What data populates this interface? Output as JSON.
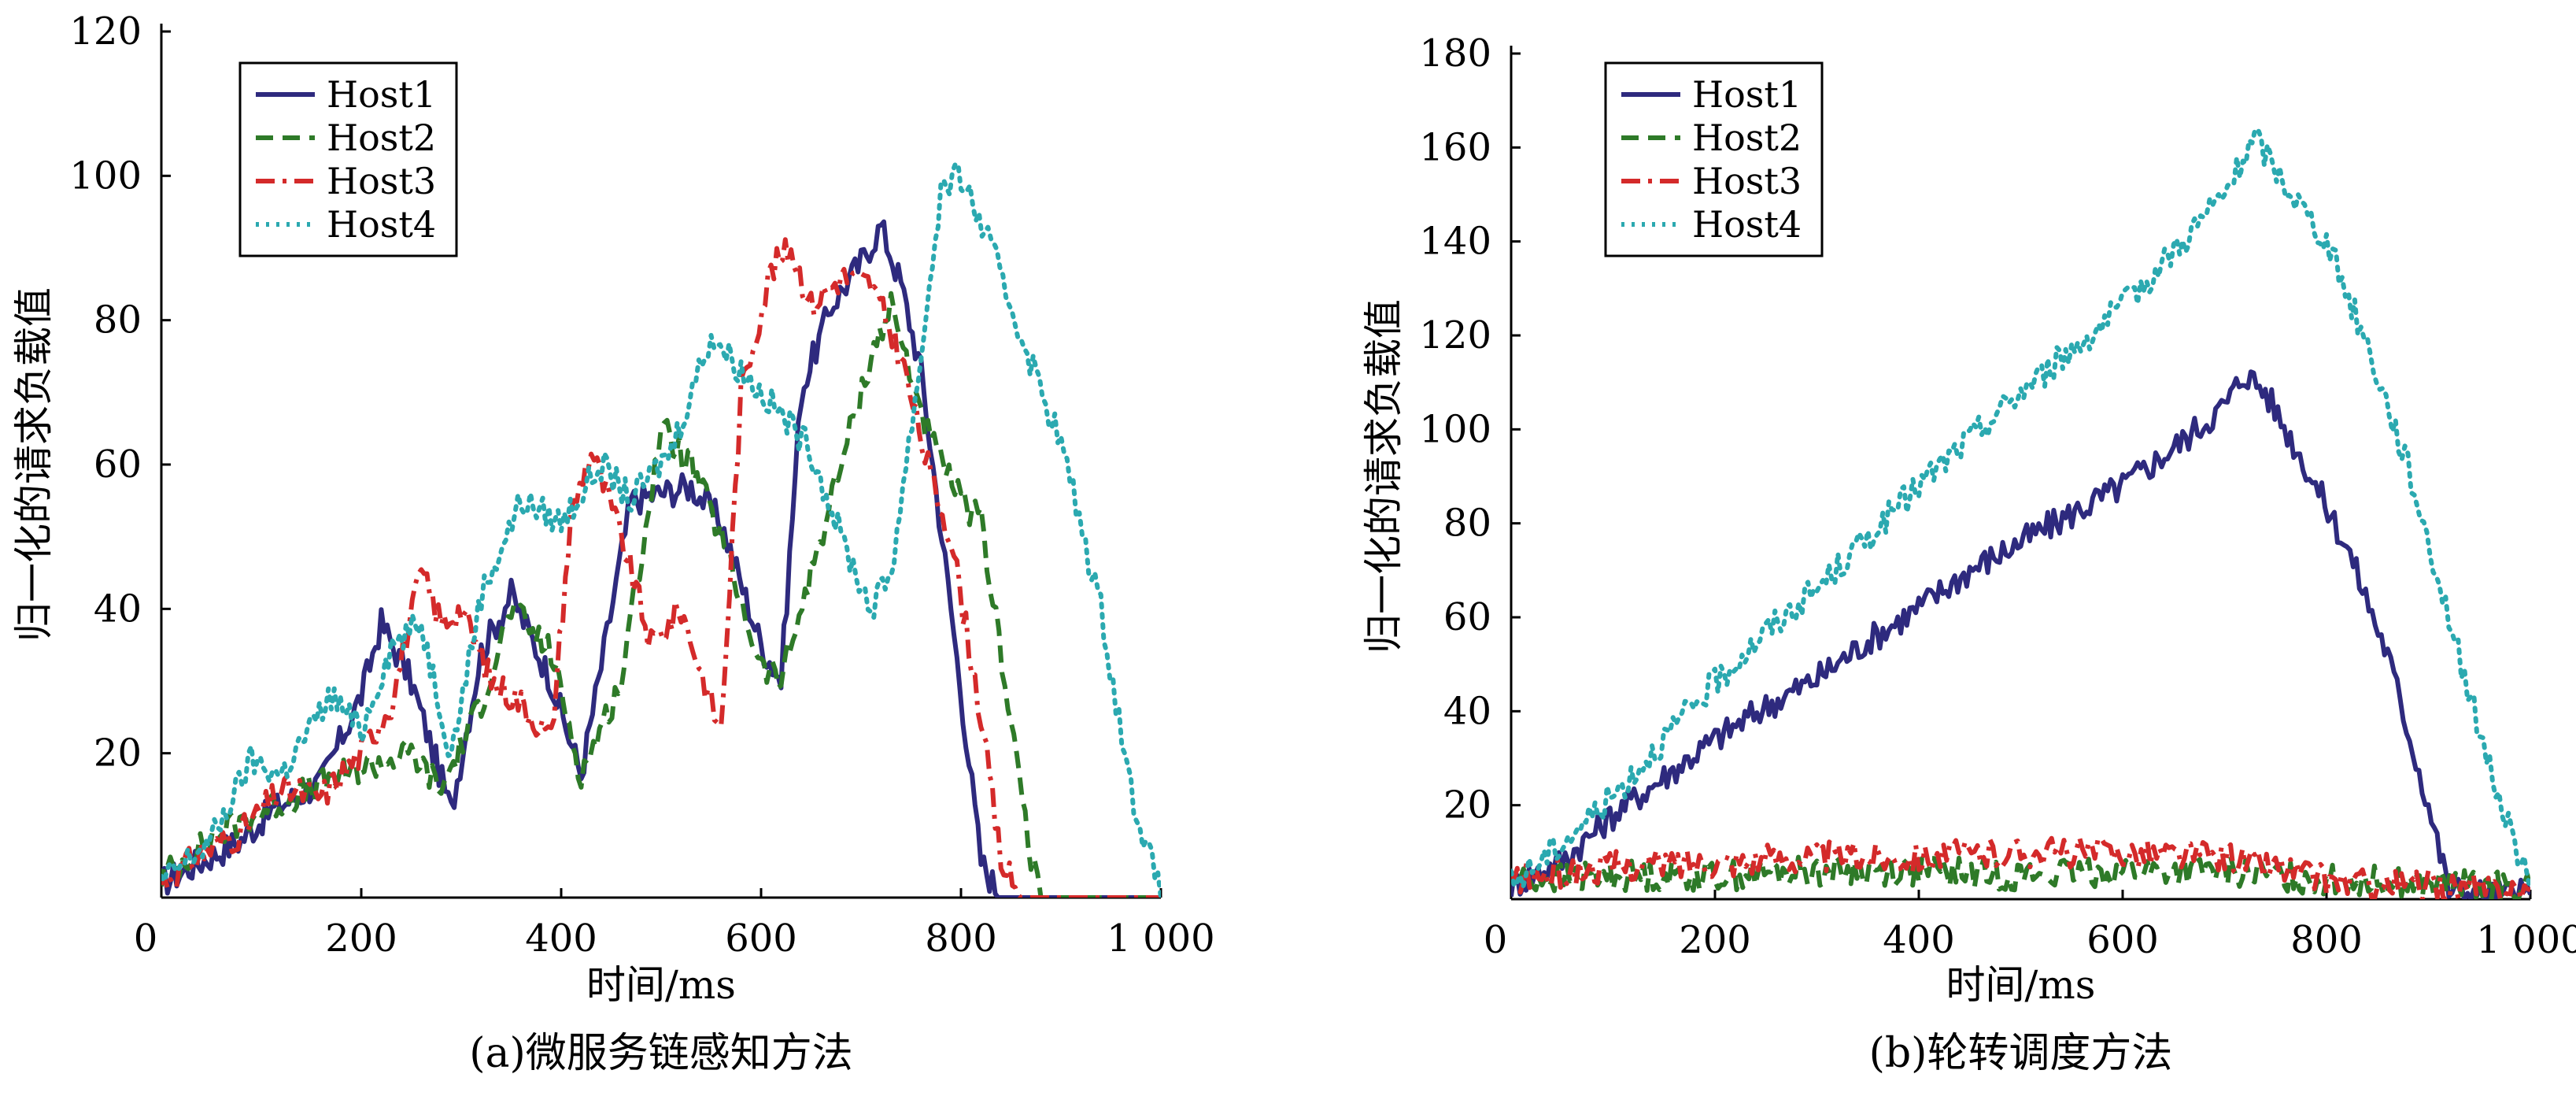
{
  "chart_data": [
    {
      "type": "line",
      "caption": "(a)微服务链感知方法",
      "xlabel": "时间/ms",
      "ylabel": "归一化的请求负载值",
      "xlim": [
        0,
        1000
      ],
      "ylim": [
        0,
        120
      ],
      "xticks": [
        "0",
        "200",
        "400",
        "600",
        "800",
        "1 000"
      ],
      "yticks": [
        "20",
        "40",
        "60",
        "80",
        "100",
        "120"
      ],
      "legend_position": "top-left",
      "series": [
        {
          "name": "Host1",
          "color": "#2e2a7e",
          "style": "solid",
          "x": [
            0,
            40,
            80,
            110,
            160,
            200,
            220,
            250,
            290,
            320,
            350,
            390,
            420,
            440,
            470,
            500,
            530,
            560,
            600,
            620,
            640,
            670,
            700,
            720,
            740,
            760,
            790,
            820,
            840,
            880,
            1000
          ],
          "y": [
            2,
            5,
            8,
            12,
            16,
            28,
            38,
            30,
            12,
            34,
            42,
            30,
            17,
            32,
            55,
            56,
            57,
            52,
            35,
            30,
            70,
            82,
            88,
            93,
            85,
            73,
            40,
            5,
            0,
            0,
            0
          ]
        },
        {
          "name": "Host2",
          "color": "#2e7a28",
          "style": "dashed",
          "x": [
            0,
            30,
            60,
            100,
            150,
            200,
            250,
            280,
            320,
            350,
            390,
            420,
            460,
            500,
            530,
            560,
            600,
            620,
            650,
            680,
            710,
            730,
            770,
            800,
            820,
            850,
            870,
            880,
            1000
          ],
          "y": [
            3,
            6,
            9,
            12,
            15,
            18,
            20,
            15,
            27,
            40,
            34,
            17,
            30,
            65,
            60,
            50,
            32,
            30,
            45,
            60,
            75,
            82,
            63,
            55,
            52,
            25,
            5,
            0,
            0
          ]
        },
        {
          "name": "Host3",
          "color": "#d42a2a",
          "style": "dashdot",
          "x": [
            0,
            40,
            80,
            120,
            160,
            200,
            230,
            260,
            280,
            300,
            330,
            360,
            390,
            410,
            430,
            460,
            490,
            520,
            550,
            560,
            580,
            610,
            630,
            650,
            680,
            710,
            740,
            770,
            790,
            820,
            840,
            860,
            1000
          ],
          "y": [
            2,
            6,
            9,
            15,
            14,
            20,
            27,
            45,
            38,
            40,
            30,
            27,
            22,
            53,
            62,
            50,
            35,
            40,
            27,
            23,
            70,
            87,
            90,
            82,
            86,
            85,
            75,
            58,
            50,
            25,
            5,
            0,
            0
          ]
        },
        {
          "name": "Host4",
          "color": "#2ba9b0",
          "style": "dotted",
          "x": [
            0,
            50,
            90,
            120,
            170,
            200,
            230,
            260,
            290,
            320,
            360,
            400,
            440,
            470,
            510,
            550,
            580,
            620,
            650,
            680,
            710,
            730,
            760,
            780,
            800,
            830,
            860,
            900,
            940,
            970,
            1000
          ],
          "y": [
            2,
            8,
            19,
            17,
            28,
            23,
            35,
            38,
            20,
            42,
            55,
            52,
            60,
            55,
            62,
            78,
            73,
            67,
            62,
            50,
            40,
            45,
            75,
            98,
            100,
            90,
            78,
            63,
            40,
            15,
            0
          ]
        }
      ]
    },
    {
      "type": "line",
      "caption": "(b)轮转调度方法",
      "xlabel": "时间/ms",
      "ylabel": "归一化的请求负载值",
      "xlim": [
        0,
        1000
      ],
      "ylim": [
        0,
        180
      ],
      "xticks": [
        "0",
        "200",
        "400",
        "600",
        "800",
        "1 000"
      ],
      "yticks": [
        "20",
        "40",
        "60",
        "80",
        "100",
        "120",
        "140",
        "160",
        "180"
      ],
      "legend_position": "top-left",
      "series": [
        {
          "name": "Host1",
          "color": "#2e2a7e",
          "style": "solid",
          "x": [
            0,
            50,
            100,
            150,
            200,
            250,
            300,
            350,
            400,
            450,
            500,
            550,
            600,
            650,
            700,
            720,
            740,
            780,
            820,
            860,
            900,
            920,
            960,
            1000
          ],
          "y": [
            3,
            8,
            18,
            26,
            34,
            41,
            47,
            55,
            62,
            70,
            76,
            82,
            88,
            96,
            105,
            112,
            108,
            92,
            75,
            52,
            20,
            2,
            1,
            1
          ]
        },
        {
          "name": "Host2",
          "color": "#2e7a28",
          "style": "dashed",
          "x": [
            0,
            100,
            200,
            300,
            400,
            500,
            600,
            700,
            750,
            800,
            850,
            900,
            950,
            1000
          ],
          "y": [
            4,
            5,
            5,
            6,
            6,
            5,
            6,
            6,
            5,
            4,
            4,
            3,
            3,
            2
          ]
        },
        {
          "name": "Host3",
          "color": "#d42a2a",
          "style": "dashdot",
          "x": [
            0,
            100,
            200,
            300,
            400,
            500,
            600,
            700,
            750,
            800,
            850,
            900,
            950,
            1000
          ],
          "y": [
            4,
            7,
            8,
            9,
            9,
            10,
            10,
            9,
            7,
            4,
            3,
            3,
            2,
            2
          ]
        },
        {
          "name": "Host4",
          "color": "#2ba9b0",
          "style": "dotted",
          "x": [
            0,
            50,
            100,
            150,
            200,
            250,
            300,
            350,
            400,
            450,
            500,
            550,
            600,
            650,
            700,
            730,
            760,
            800,
            840,
            880,
            920,
            960,
            1000
          ],
          "y": [
            3,
            12,
            22,
            34,
            46,
            57,
            66,
            77,
            88,
            98,
            108,
            117,
            126,
            138,
            150,
            162,
            152,
            140,
            118,
            92,
            60,
            28,
            2
          ]
        }
      ]
    }
  ]
}
